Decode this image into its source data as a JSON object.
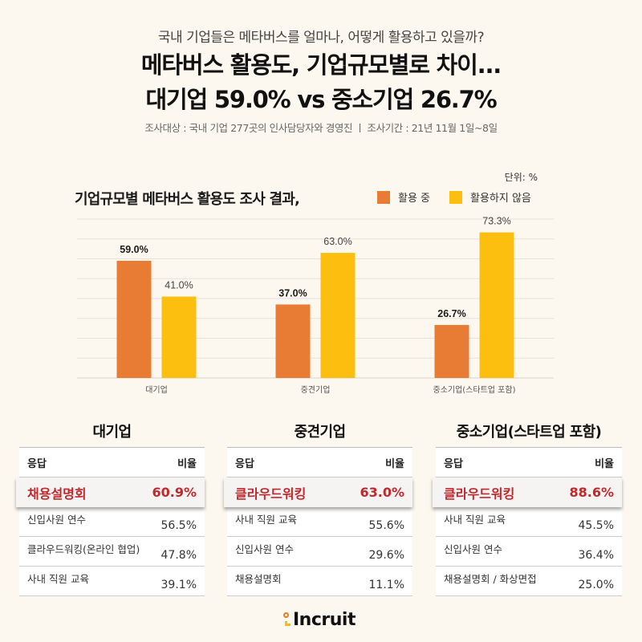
{
  "header": {
    "subtitle": "국내 기업들은 메타버스를 얼마나, 어떻게 활용하고 있을까?",
    "headline_line1": "메타버스 활용도, 기업규모별로 차이...",
    "headline_line2": "대기업 59.0% vs 중소기업 26.7%",
    "survey_info": "조사대상 : 국내 기업 277곳의 인사담당자와 경영진  ㅣ  조사기간 : 21년 11월 1일~8일"
  },
  "colors": {
    "background": "#fcf8ef",
    "using": "#e97c34",
    "not_using": "#fdbf0f",
    "highlight_red": "#c0282d",
    "gridline": "#e6e2da"
  },
  "chart_data": {
    "type": "bar",
    "title": "기업규모별 메타버스 활용도 조사 결과,",
    "unit_label": "단위: %",
    "categories": [
      "대기업",
      "중견기업",
      "중소기업(스타트업 포함)"
    ],
    "series": [
      {
        "name": "활용 중",
        "values": [
          59.0,
          37.0,
          26.7
        ],
        "labels": [
          "59.0%",
          "37.0%",
          "26.7%"
        ],
        "color": "#e97c34"
      },
      {
        "name": "활용하지 않음",
        "values": [
          41.0,
          63.0,
          73.3
        ],
        "labels": [
          "41.0%",
          "63.0%",
          "73.3%"
        ],
        "color": "#fdbf0f"
      }
    ],
    "xlabel": "",
    "ylabel": "",
    "ylim": [
      0,
      80
    ],
    "grid": true,
    "grid_step": 10,
    "legend_position": "top-right"
  },
  "tables": [
    {
      "title": "대기업",
      "headers": [
        "응답",
        "비율"
      ],
      "top": {
        "label": "채용설명회",
        "value": "60.9%"
      },
      "rows": [
        {
          "label": "신입사원 연수",
          "value": "56.5%"
        },
        {
          "label": "클라우드워킹(온라인 협업)",
          "value": "47.8%"
        },
        {
          "label": "사내 직원 교육",
          "value": "39.1%"
        }
      ]
    },
    {
      "title": "중견기업",
      "headers": [
        "응답",
        "비율"
      ],
      "top": {
        "label": "클라우드워킹",
        "value": "63.0%"
      },
      "rows": [
        {
          "label": "사내 직원 교육",
          "value": "55.6%"
        },
        {
          "label": "신입사원 연수",
          "value": "29.6%"
        },
        {
          "label": "채용설명회",
          "value": "11.1%"
        }
      ]
    },
    {
      "title": "중소기업(스타트업 포함)",
      "headers": [
        "응답",
        "비율"
      ],
      "top": {
        "label": "클라우드워킹",
        "value": "88.6%"
      },
      "rows": [
        {
          "label": "사내 직원 교육",
          "value": "45.5%"
        },
        {
          "label": "신입사원 연수",
          "value": "36.4%"
        },
        {
          "label": "채용설명회 / 화상면접",
          "value": "25.0%"
        }
      ]
    }
  ],
  "footer": {
    "logo_text": "Incruit"
  }
}
